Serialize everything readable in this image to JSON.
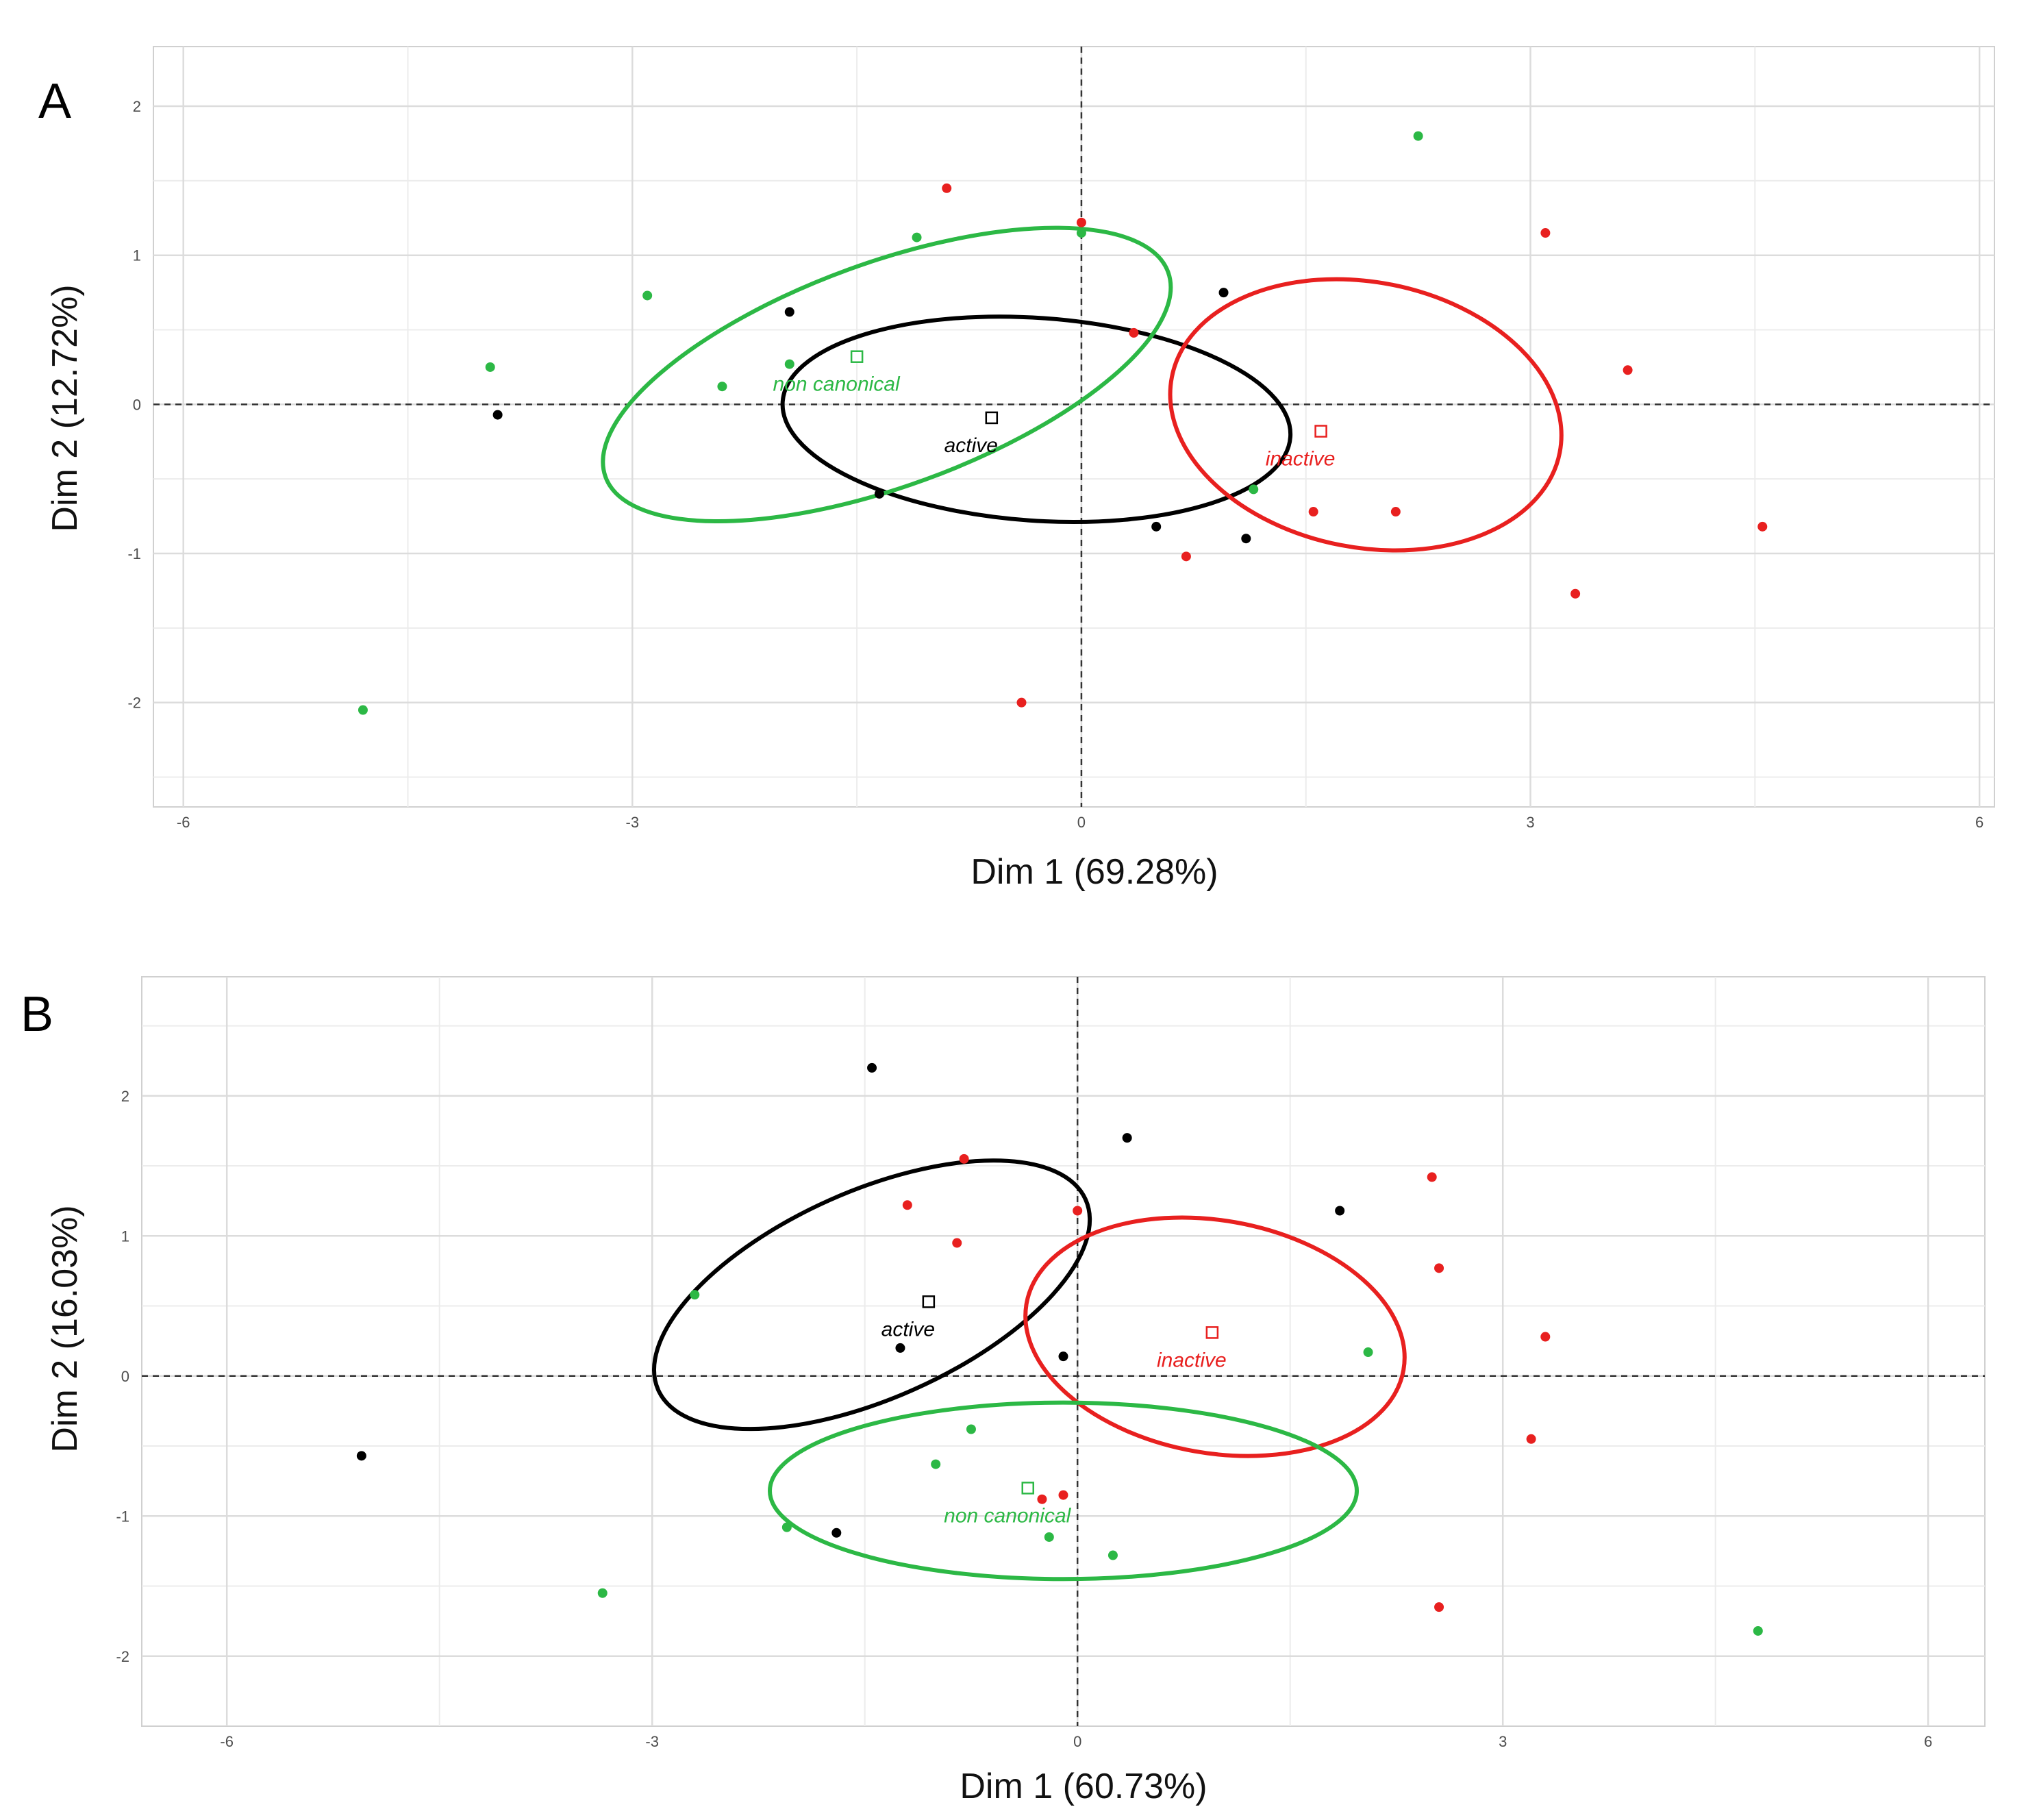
{
  "panels": [
    {
      "letter": "A",
      "xlabel": "Dim 1 (69.28%)",
      "ylabel": "Dim 2 (12.72%)"
    },
    {
      "letter": "B",
      "xlabel": "Dim 1 (60.73%)",
      "ylabel": "Dim 2 (16.03%)"
    }
  ],
  "chart_data": [
    {
      "type": "scatter",
      "panel": "A",
      "xlabel": "Dim 1 (69.28%)",
      "ylabel": "Dim 2 (12.72%)",
      "xlim": [
        -6.2,
        6.1
      ],
      "ylim": [
        -2.7,
        2.4
      ],
      "x_ticks": [
        -6,
        -3,
        0,
        3,
        6
      ],
      "y_ticks": [
        -2,
        -1,
        0,
        1,
        2
      ],
      "grid": true,
      "reference_lines": {
        "x": 0,
        "y": 0
      },
      "colors": {
        "active": "#000000",
        "inactive": "#e8201f",
        "non canonical": "#2cb845"
      },
      "groups": [
        {
          "name": "active",
          "color": "#000000",
          "centroid": [
            -0.6,
            -0.09
          ],
          "ellipse": {
            "center": [
              -0.3,
              -0.1
            ],
            "rx": 1.7,
            "ry": 0.68,
            "angle": -4
          },
          "points": [
            [
              -3.9,
              -0.07
            ],
            [
              -1.95,
              0.62
            ],
            [
              -1.35,
              -0.6
            ],
            [
              0.95,
              0.75
            ],
            [
              0.5,
              -0.82
            ],
            [
              1.1,
              -0.9
            ]
          ]
        },
        {
          "name": "inactive",
          "color": "#e8201f",
          "centroid": [
            1.6,
            -0.18
          ],
          "ellipse": {
            "center": [
              1.9,
              -0.07
            ],
            "rx": 1.32,
            "ry": 0.89,
            "angle": -11
          },
          "points": [
            [
              -0.9,
              1.45
            ],
            [
              0.0,
              1.22
            ],
            [
              0.35,
              0.48
            ],
            [
              0.7,
              -1.02
            ],
            [
              1.55,
              -0.72
            ],
            [
              2.1,
              -0.72
            ],
            [
              3.1,
              1.15
            ],
            [
              3.65,
              0.23
            ],
            [
              3.3,
              -1.27
            ],
            [
              4.55,
              -0.82
            ],
            [
              -0.4,
              -2.0
            ]
          ]
        },
        {
          "name": "non canonical",
          "color": "#2cb845",
          "centroid": [
            -1.5,
            0.32
          ],
          "ellipse": {
            "center": [
              -1.3,
              0.2
            ],
            "rx": 2.0,
            "ry": 0.75,
            "angle": 20
          },
          "points": [
            [
              -3.95,
              0.25
            ],
            [
              -2.9,
              0.73
            ],
            [
              -2.4,
              0.12
            ],
            [
              -1.95,
              0.27
            ],
            [
              -1.1,
              1.12
            ],
            [
              0.0,
              1.15
            ],
            [
              1.15,
              -0.57
            ],
            [
              2.25,
              1.8
            ],
            [
              -4.8,
              -2.05
            ]
          ]
        }
      ]
    },
    {
      "type": "scatter",
      "panel": "B",
      "xlabel": "Dim 1 (60.73%)",
      "ylabel": "Dim 2 (16.03%)",
      "xlim": [
        -6.6,
        6.4
      ],
      "ylim": [
        -2.5,
        2.85
      ],
      "x_ticks": [
        -6,
        -3,
        0,
        3,
        6
      ],
      "y_ticks": [
        -2,
        -1,
        0,
        1,
        2
      ],
      "grid": true,
      "reference_lines": {
        "x": 0,
        "y": 0
      },
      "colors": {
        "active": "#000000",
        "inactive": "#e8201f",
        "non canonical": "#2cb845"
      },
      "groups": [
        {
          "name": "active",
          "color": "#000000",
          "centroid": [
            -1.05,
            0.53
          ],
          "ellipse": {
            "center": [
              -1.45,
              0.58
            ],
            "rx": 1.65,
            "ry": 0.74,
            "angle": 24
          },
          "points": [
            [
              -1.45,
              2.2
            ],
            [
              0.35,
              1.7
            ],
            [
              1.85,
              1.18
            ],
            [
              -1.25,
              0.2
            ],
            [
              -0.1,
              0.14
            ],
            [
              -5.05,
              -0.57
            ],
            [
              -1.7,
              -1.12
            ]
          ]
        },
        {
          "name": "inactive",
          "color": "#e8201f",
          "centroid": [
            0.95,
            0.31
          ],
          "ellipse": {
            "center": [
              0.97,
              0.28
            ],
            "rx": 1.35,
            "ry": 0.83,
            "angle": -10
          },
          "points": [
            [
              -1.2,
              1.22
            ],
            [
              -0.85,
              0.95
            ],
            [
              0.0,
              1.18
            ],
            [
              2.5,
              1.42
            ],
            [
              2.55,
              0.77
            ],
            [
              3.3,
              0.28
            ],
            [
              3.2,
              -0.45
            ],
            [
              -0.25,
              -0.88
            ],
            [
              -0.1,
              -0.85
            ],
            [
              2.55,
              -1.65
            ],
            [
              -0.8,
              1.55
            ]
          ]
        },
        {
          "name": "non canonical",
          "color": "#2cb845",
          "centroid": [
            -0.35,
            -0.8
          ],
          "ellipse": {
            "center": [
              -0.1,
              -0.82
            ],
            "rx": 2.07,
            "ry": 0.63,
            "angle": 0
          },
          "points": [
            [
              -2.7,
              0.58
            ],
            [
              -0.75,
              -0.38
            ],
            [
              -1.0,
              -0.63
            ],
            [
              2.05,
              0.17
            ],
            [
              -0.2,
              -1.15
            ],
            [
              0.25,
              -1.28
            ],
            [
              -2.05,
              -1.08
            ],
            [
              -3.35,
              -1.55
            ],
            [
              4.8,
              -1.82
            ]
          ]
        }
      ]
    }
  ]
}
